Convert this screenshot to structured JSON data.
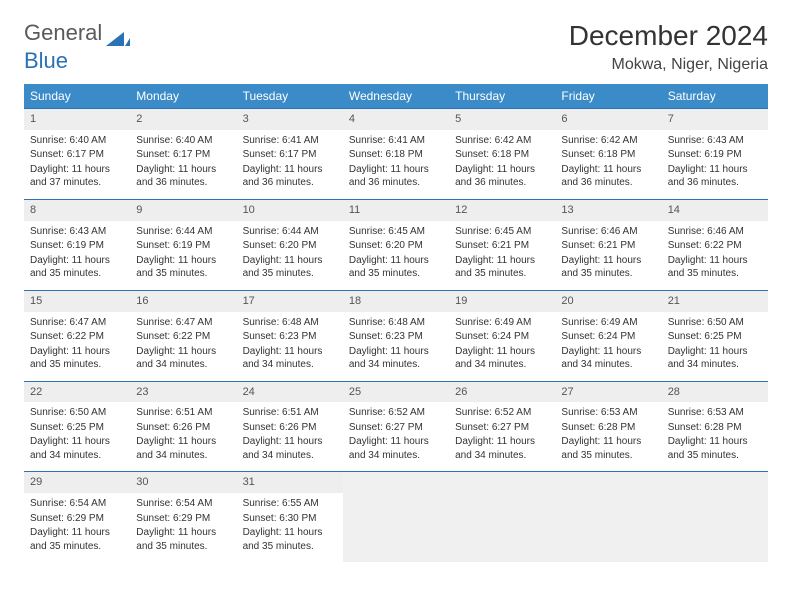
{
  "brand": {
    "part1": "General",
    "part2": "Blue"
  },
  "title": "December 2024",
  "location": "Mokwa, Niger, Nigeria",
  "colors": {
    "header_bg": "#3b8bc9",
    "header_fg": "#ffffff",
    "row_border": "#2a72b5",
    "daynum_bg": "#eeeeee",
    "empty_bg": "#f0f0f0",
    "logo_blue": "#2a72b5",
    "body_text": "#333333"
  },
  "typography": {
    "title_fontsize": 28,
    "location_fontsize": 16,
    "weekday_fontsize": 12,
    "daynum_fontsize": 11,
    "cell_fontsize": 10,
    "font_family": "Arial"
  },
  "calendar": {
    "type": "table",
    "columns": [
      "Sunday",
      "Monday",
      "Tuesday",
      "Wednesday",
      "Thursday",
      "Friday",
      "Saturday"
    ],
    "rows": [
      [
        {
          "day": "1",
          "sunrise": "Sunrise: 6:40 AM",
          "sunset": "Sunset: 6:17 PM",
          "daylight": "Daylight: 11 hours and 37 minutes."
        },
        {
          "day": "2",
          "sunrise": "Sunrise: 6:40 AM",
          "sunset": "Sunset: 6:17 PM",
          "daylight": "Daylight: 11 hours and 36 minutes."
        },
        {
          "day": "3",
          "sunrise": "Sunrise: 6:41 AM",
          "sunset": "Sunset: 6:17 PM",
          "daylight": "Daylight: 11 hours and 36 minutes."
        },
        {
          "day": "4",
          "sunrise": "Sunrise: 6:41 AM",
          "sunset": "Sunset: 6:18 PM",
          "daylight": "Daylight: 11 hours and 36 minutes."
        },
        {
          "day": "5",
          "sunrise": "Sunrise: 6:42 AM",
          "sunset": "Sunset: 6:18 PM",
          "daylight": "Daylight: 11 hours and 36 minutes."
        },
        {
          "day": "6",
          "sunrise": "Sunrise: 6:42 AM",
          "sunset": "Sunset: 6:18 PM",
          "daylight": "Daylight: 11 hours and 36 minutes."
        },
        {
          "day": "7",
          "sunrise": "Sunrise: 6:43 AM",
          "sunset": "Sunset: 6:19 PM",
          "daylight": "Daylight: 11 hours and 36 minutes."
        }
      ],
      [
        {
          "day": "8",
          "sunrise": "Sunrise: 6:43 AM",
          "sunset": "Sunset: 6:19 PM",
          "daylight": "Daylight: 11 hours and 35 minutes."
        },
        {
          "day": "9",
          "sunrise": "Sunrise: 6:44 AM",
          "sunset": "Sunset: 6:19 PM",
          "daylight": "Daylight: 11 hours and 35 minutes."
        },
        {
          "day": "10",
          "sunrise": "Sunrise: 6:44 AM",
          "sunset": "Sunset: 6:20 PM",
          "daylight": "Daylight: 11 hours and 35 minutes."
        },
        {
          "day": "11",
          "sunrise": "Sunrise: 6:45 AM",
          "sunset": "Sunset: 6:20 PM",
          "daylight": "Daylight: 11 hours and 35 minutes."
        },
        {
          "day": "12",
          "sunrise": "Sunrise: 6:45 AM",
          "sunset": "Sunset: 6:21 PM",
          "daylight": "Daylight: 11 hours and 35 minutes."
        },
        {
          "day": "13",
          "sunrise": "Sunrise: 6:46 AM",
          "sunset": "Sunset: 6:21 PM",
          "daylight": "Daylight: 11 hours and 35 minutes."
        },
        {
          "day": "14",
          "sunrise": "Sunrise: 6:46 AM",
          "sunset": "Sunset: 6:22 PM",
          "daylight": "Daylight: 11 hours and 35 minutes."
        }
      ],
      [
        {
          "day": "15",
          "sunrise": "Sunrise: 6:47 AM",
          "sunset": "Sunset: 6:22 PM",
          "daylight": "Daylight: 11 hours and 35 minutes."
        },
        {
          "day": "16",
          "sunrise": "Sunrise: 6:47 AM",
          "sunset": "Sunset: 6:22 PM",
          "daylight": "Daylight: 11 hours and 34 minutes."
        },
        {
          "day": "17",
          "sunrise": "Sunrise: 6:48 AM",
          "sunset": "Sunset: 6:23 PM",
          "daylight": "Daylight: 11 hours and 34 minutes."
        },
        {
          "day": "18",
          "sunrise": "Sunrise: 6:48 AM",
          "sunset": "Sunset: 6:23 PM",
          "daylight": "Daylight: 11 hours and 34 minutes."
        },
        {
          "day": "19",
          "sunrise": "Sunrise: 6:49 AM",
          "sunset": "Sunset: 6:24 PM",
          "daylight": "Daylight: 11 hours and 34 minutes."
        },
        {
          "day": "20",
          "sunrise": "Sunrise: 6:49 AM",
          "sunset": "Sunset: 6:24 PM",
          "daylight": "Daylight: 11 hours and 34 minutes."
        },
        {
          "day": "21",
          "sunrise": "Sunrise: 6:50 AM",
          "sunset": "Sunset: 6:25 PM",
          "daylight": "Daylight: 11 hours and 34 minutes."
        }
      ],
      [
        {
          "day": "22",
          "sunrise": "Sunrise: 6:50 AM",
          "sunset": "Sunset: 6:25 PM",
          "daylight": "Daylight: 11 hours and 34 minutes."
        },
        {
          "day": "23",
          "sunrise": "Sunrise: 6:51 AM",
          "sunset": "Sunset: 6:26 PM",
          "daylight": "Daylight: 11 hours and 34 minutes."
        },
        {
          "day": "24",
          "sunrise": "Sunrise: 6:51 AM",
          "sunset": "Sunset: 6:26 PM",
          "daylight": "Daylight: 11 hours and 34 minutes."
        },
        {
          "day": "25",
          "sunrise": "Sunrise: 6:52 AM",
          "sunset": "Sunset: 6:27 PM",
          "daylight": "Daylight: 11 hours and 34 minutes."
        },
        {
          "day": "26",
          "sunrise": "Sunrise: 6:52 AM",
          "sunset": "Sunset: 6:27 PM",
          "daylight": "Daylight: 11 hours and 34 minutes."
        },
        {
          "day": "27",
          "sunrise": "Sunrise: 6:53 AM",
          "sunset": "Sunset: 6:28 PM",
          "daylight": "Daylight: 11 hours and 35 minutes."
        },
        {
          "day": "28",
          "sunrise": "Sunrise: 6:53 AM",
          "sunset": "Sunset: 6:28 PM",
          "daylight": "Daylight: 11 hours and 35 minutes."
        }
      ],
      [
        {
          "day": "29",
          "sunrise": "Sunrise: 6:54 AM",
          "sunset": "Sunset: 6:29 PM",
          "daylight": "Daylight: 11 hours and 35 minutes."
        },
        {
          "day": "30",
          "sunrise": "Sunrise: 6:54 AM",
          "sunset": "Sunset: 6:29 PM",
          "daylight": "Daylight: 11 hours and 35 minutes."
        },
        {
          "day": "31",
          "sunrise": "Sunrise: 6:55 AM",
          "sunset": "Sunset: 6:30 PM",
          "daylight": "Daylight: 11 hours and 35 minutes."
        },
        null,
        null,
        null,
        null
      ]
    ]
  }
}
